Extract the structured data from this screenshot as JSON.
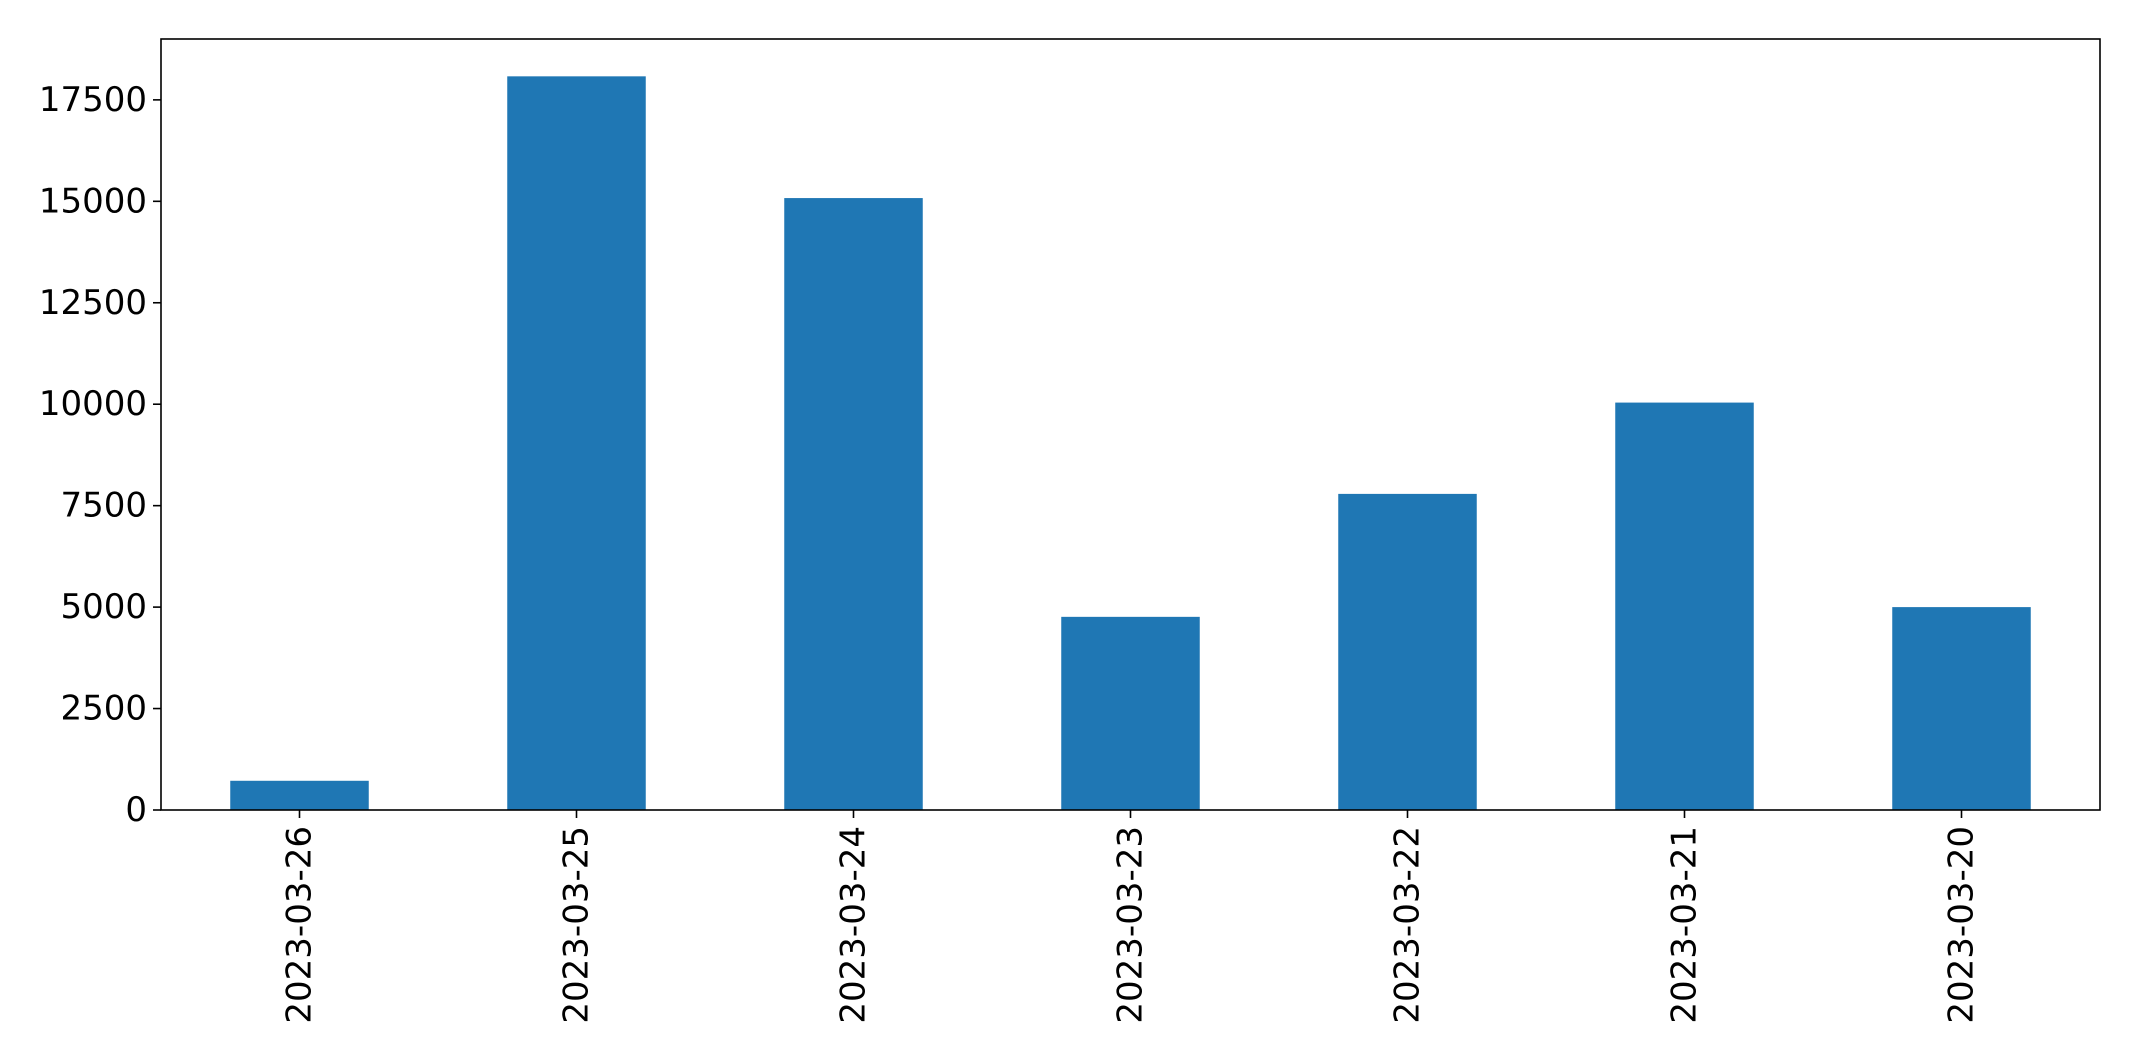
{
  "chart_data": {
    "type": "bar",
    "title": "",
    "xlabel": "",
    "ylabel": "",
    "categories": [
      "2023-03-26",
      "2023-03-25",
      "2023-03-24",
      "2023-03-23",
      "2023-03-22",
      "2023-03-21",
      "2023-03-20"
    ],
    "values": [
      720,
      18080,
      15080,
      4760,
      7790,
      10040,
      5000
    ],
    "ylim": [
      0,
      19000
    ],
    "yticks": [
      0,
      2500,
      5000,
      7500,
      10000,
      12500,
      15000,
      17500
    ],
    "ytick_labels": [
      "0",
      "2500",
      "5000",
      "7500",
      "10000",
      "12500",
      "15000",
      "17500"
    ],
    "bar_color": "#1f77b4",
    "grid": false,
    "legend": false
  }
}
